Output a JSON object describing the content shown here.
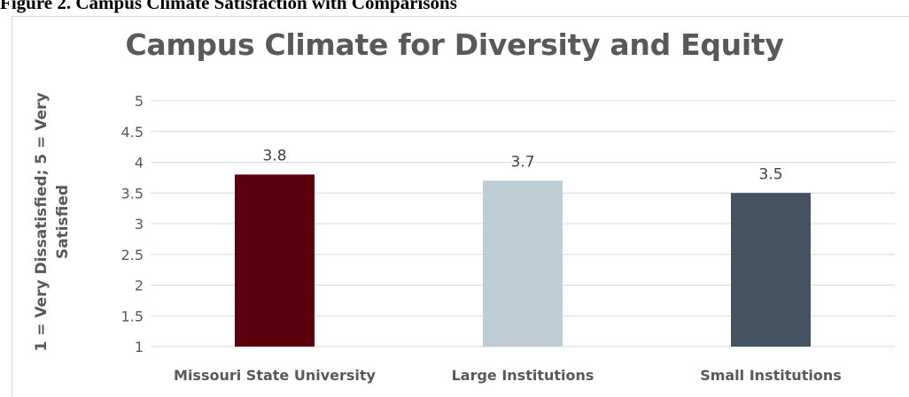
{
  "figure_caption": "Figure 2. Campus Climate Satisfaction with Comparisons",
  "chart_data": {
    "type": "bar",
    "title": "Campus Climate for Diversity and Equity",
    "ylabel": "1 = Very Dissatisfied; 5 = Very Satisfied",
    "xlabel": "",
    "ylim": [
      1,
      5
    ],
    "yticks": [
      "5",
      "4.5",
      "4",
      "3.5",
      "3",
      "2.5",
      "2",
      "1.5",
      "1"
    ],
    "categories": [
      "Missouri State University",
      "Large Institutions",
      "Small Institutions"
    ],
    "values": [
      3.8,
      3.7,
      3.5
    ],
    "data_labels": [
      "3.8",
      "3.7",
      "3.5"
    ],
    "bar_colors": [
      "#5c000e",
      "#bfcdd6",
      "#44535f"
    ],
    "gridlines": true,
    "legend": "none"
  }
}
